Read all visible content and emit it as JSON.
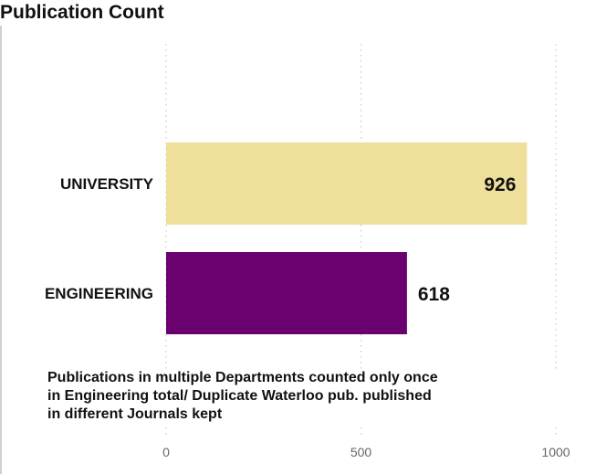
{
  "title": "Publication Count",
  "chart_data": {
    "type": "bar",
    "orientation": "horizontal",
    "title": "Publication Count",
    "categories": [
      "UNIVERSITY",
      "ENGINEERING"
    ],
    "values": [
      926,
      618
    ],
    "bar_colors": [
      "#EEDF9A",
      "#6B006F"
    ],
    "xlim": [
      0,
      1000
    ],
    "x_ticks": [
      0,
      500,
      1000
    ],
    "x_tick_labels": [
      "0",
      "500",
      "1000"
    ],
    "grid": "vertical dotted",
    "xlabel": "",
    "ylabel": ""
  },
  "note": {
    "lines": [
      "Publications in multiple Departments counted only once",
      "in Engineering total/ Duplicate Waterloo pub. published",
      "in different Journals kept"
    ]
  }
}
